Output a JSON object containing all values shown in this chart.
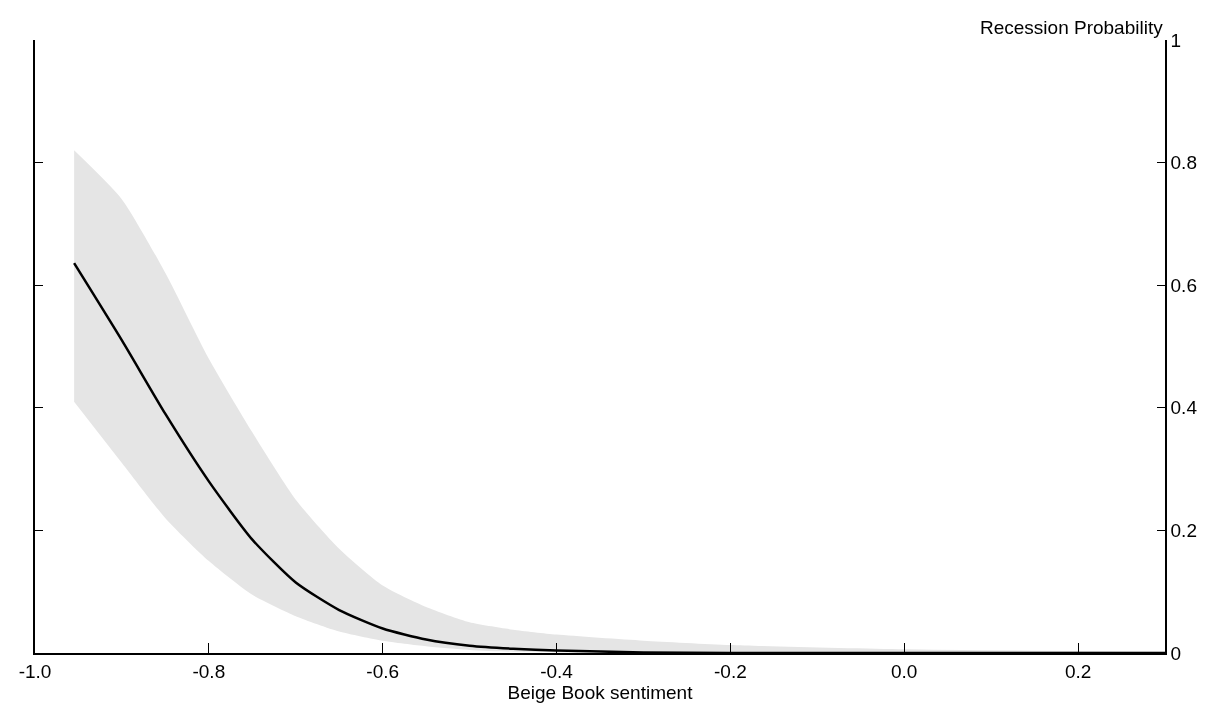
{
  "chart_data": {
    "type": "line",
    "xlabel": "Beige Book sentiment",
    "ylabel": "Recession Probability",
    "series": [
      {
        "color": "#000000",
        "x": [
          -0.955,
          -0.9,
          -0.85,
          -0.8,
          -0.75,
          -0.7,
          -0.65,
          -0.6,
          -0.55,
          -0.5,
          -0.45,
          -0.4,
          -0.3,
          -0.2,
          0,
          0.3
        ],
        "values": [
          0.636,
          0.51,
          0.39,
          0.28,
          0.185,
          0.115,
          0.07,
          0.04,
          0.022,
          0.012,
          0.007,
          0.004,
          0.001,
          0,
          0,
          0
        ],
        "lower": [
          0.41,
          0.31,
          0.22,
          0.15,
          0.095,
          0.06,
          0.035,
          0.02,
          0.011,
          0.005,
          0.002,
          0.001,
          0,
          0,
          0,
          0
        ],
        "upper": [
          0.82,
          0.74,
          0.62,
          0.48,
          0.36,
          0.25,
          0.17,
          0.11,
          0.075,
          0.05,
          0.038,
          0.03,
          0.02,
          0.013,
          0.006,
          0.002
        ]
      }
    ],
    "xlim": [
      -1.0,
      0.3
    ],
    "xticks": [
      {
        "value": -1,
        "label": "-1.0"
      },
      -0.8,
      -0.6,
      -0.4,
      -0.2,
      {
        "value": 0,
        "label": "0.0"
      },
      0.2
    ],
    "ylim": [
      0,
      1
    ],
    "yticks": [
      0,
      0.2,
      0.4,
      0.6,
      0.8,
      1
    ],
    "grid": false,
    "marker": "none",
    "line_style": "solid"
  }
}
